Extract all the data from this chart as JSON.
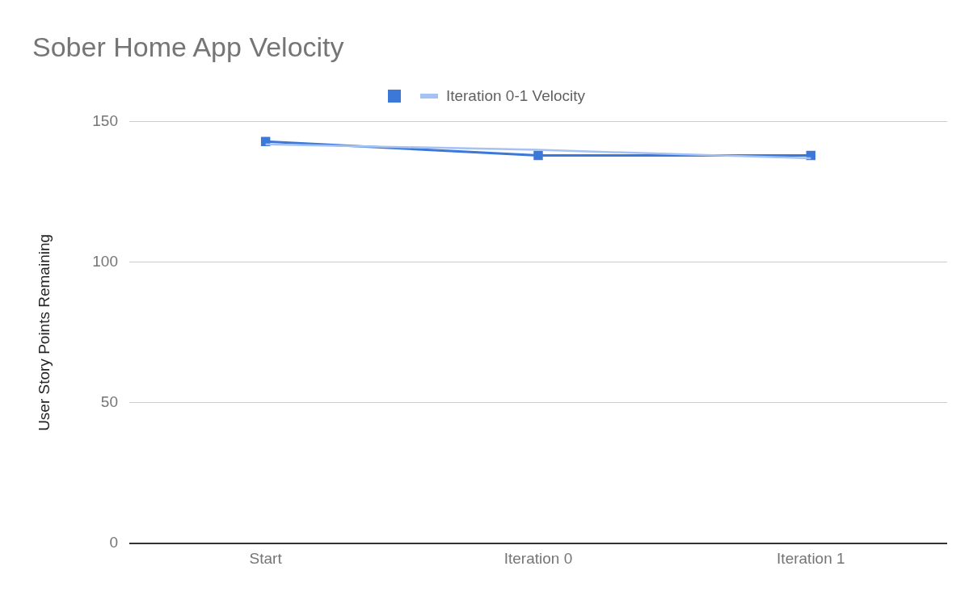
{
  "chart_data": {
    "type": "line",
    "title": "Sober Home App Velocity",
    "ylabel": "User Story Points Remaining",
    "categories": [
      "Start",
      "Iteration 0",
      "Iteration 1"
    ],
    "ylim": [
      0,
      150
    ],
    "yticks": [
      0,
      50,
      100,
      150
    ],
    "grid": "y",
    "legend": "top",
    "marker": "square",
    "series": [
      {
        "color": "#3c78d8",
        "values": [
          143,
          138,
          138
        ]
      },
      {
        "name": "Iteration 0-1 Velocity",
        "type": "line",
        "marker": "none",
        "color": "#a4c2f4",
        "values": [
          142,
          140,
          137
        ]
      }
    ]
  }
}
